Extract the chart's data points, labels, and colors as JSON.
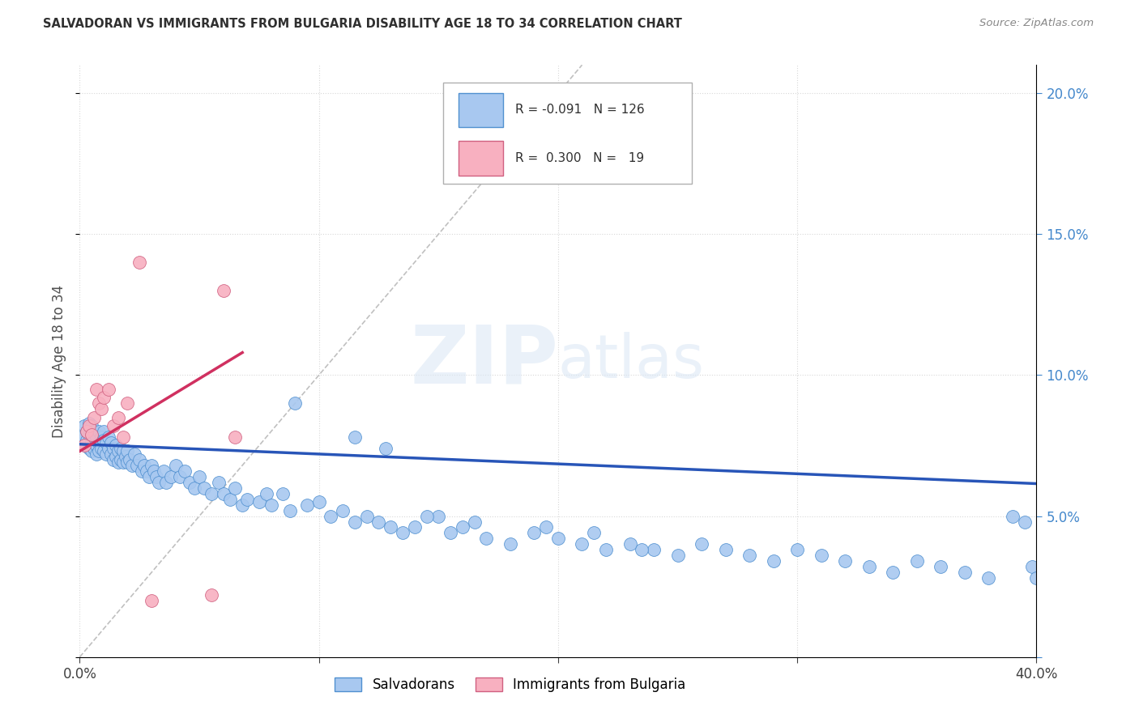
{
  "title": "SALVADORAN VS IMMIGRANTS FROM BULGARIA DISABILITY AGE 18 TO 34 CORRELATION CHART",
  "source": "Source: ZipAtlas.com",
  "ylabel": "Disability Age 18 to 34",
  "legend_1_label": "Salvadorans",
  "legend_2_label": "Immigrants from Bulgaria",
  "R1": "-0.091",
  "N1": "126",
  "R2": "0.300",
  "N2": "19",
  "blue_dot_color": "#a8c8f0",
  "blue_dot_edge": "#5090d0",
  "pink_dot_color": "#f8b0c0",
  "pink_dot_edge": "#d06080",
  "blue_line_color": "#2855b8",
  "pink_line_color": "#d03060",
  "diag_line_color": "#c0c0c0",
  "grid_color": "#d8d8d8",
  "right_axis_color": "#4488cc",
  "x_lim": [
    0.0,
    0.4
  ],
  "y_lim": [
    0.0,
    0.21
  ],
  "blue_line_y0": 0.0755,
  "blue_line_y1": 0.0615,
  "pink_line_x0": 0.0,
  "pink_line_x1": 0.068,
  "pink_line_y0": 0.073,
  "pink_line_y1": 0.108,
  "salv_x": [
    0.001,
    0.002,
    0.002,
    0.003,
    0.003,
    0.004,
    0.004,
    0.004,
    0.005,
    0.005,
    0.005,
    0.006,
    0.006,
    0.006,
    0.007,
    0.007,
    0.007,
    0.008,
    0.008,
    0.008,
    0.009,
    0.009,
    0.01,
    0.01,
    0.01,
    0.011,
    0.011,
    0.012,
    0.012,
    0.013,
    0.013,
    0.014,
    0.014,
    0.015,
    0.015,
    0.016,
    0.016,
    0.017,
    0.017,
    0.018,
    0.018,
    0.019,
    0.02,
    0.02,
    0.021,
    0.022,
    0.023,
    0.024,
    0.025,
    0.026,
    0.027,
    0.028,
    0.029,
    0.03,
    0.031,
    0.032,
    0.033,
    0.035,
    0.036,
    0.038,
    0.04,
    0.042,
    0.044,
    0.046,
    0.048,
    0.05,
    0.052,
    0.055,
    0.058,
    0.06,
    0.063,
    0.065,
    0.068,
    0.07,
    0.075,
    0.078,
    0.08,
    0.085,
    0.088,
    0.09,
    0.095,
    0.1,
    0.105,
    0.11,
    0.115,
    0.12,
    0.125,
    0.13,
    0.135,
    0.14,
    0.15,
    0.155,
    0.16,
    0.17,
    0.18,
    0.19,
    0.2,
    0.21,
    0.22,
    0.23,
    0.24,
    0.25,
    0.26,
    0.27,
    0.28,
    0.29,
    0.3,
    0.31,
    0.32,
    0.33,
    0.34,
    0.35,
    0.36,
    0.37,
    0.38,
    0.39,
    0.395,
    0.398,
    0.4,
    0.115,
    0.128,
    0.145,
    0.165,
    0.195,
    0.215,
    0.235
  ],
  "salv_y": [
    0.078,
    0.082,
    0.075,
    0.08,
    0.077,
    0.083,
    0.079,
    0.074,
    0.082,
    0.076,
    0.073,
    0.08,
    0.077,
    0.074,
    0.078,
    0.075,
    0.072,
    0.08,
    0.076,
    0.073,
    0.078,
    0.074,
    0.08,
    0.077,
    0.073,
    0.076,
    0.072,
    0.078,
    0.074,
    0.076,
    0.072,
    0.074,
    0.07,
    0.075,
    0.071,
    0.073,
    0.069,
    0.074,
    0.07,
    0.073,
    0.069,
    0.071,
    0.073,
    0.069,
    0.07,
    0.068,
    0.072,
    0.068,
    0.07,
    0.066,
    0.068,
    0.066,
    0.064,
    0.068,
    0.066,
    0.064,
    0.062,
    0.066,
    0.062,
    0.064,
    0.068,
    0.064,
    0.066,
    0.062,
    0.06,
    0.064,
    0.06,
    0.058,
    0.062,
    0.058,
    0.056,
    0.06,
    0.054,
    0.056,
    0.055,
    0.058,
    0.054,
    0.058,
    0.052,
    0.09,
    0.054,
    0.055,
    0.05,
    0.052,
    0.048,
    0.05,
    0.048,
    0.046,
    0.044,
    0.046,
    0.05,
    0.044,
    0.046,
    0.042,
    0.04,
    0.044,
    0.042,
    0.04,
    0.038,
    0.04,
    0.038,
    0.036,
    0.04,
    0.038,
    0.036,
    0.034,
    0.038,
    0.036,
    0.034,
    0.032,
    0.03,
    0.034,
    0.032,
    0.03,
    0.028,
    0.05,
    0.048,
    0.032,
    0.028,
    0.078,
    0.074,
    0.05,
    0.048,
    0.046,
    0.044,
    0.038
  ],
  "bulg_x": [
    0.002,
    0.003,
    0.004,
    0.005,
    0.006,
    0.007,
    0.008,
    0.009,
    0.01,
    0.012,
    0.014,
    0.016,
    0.018,
    0.02,
    0.025,
    0.03,
    0.055,
    0.06,
    0.065
  ],
  "bulg_y": [
    0.075,
    0.08,
    0.082,
    0.079,
    0.085,
    0.095,
    0.09,
    0.088,
    0.092,
    0.095,
    0.082,
    0.085,
    0.078,
    0.09,
    0.14,
    0.02,
    0.022,
    0.13,
    0.078
  ]
}
